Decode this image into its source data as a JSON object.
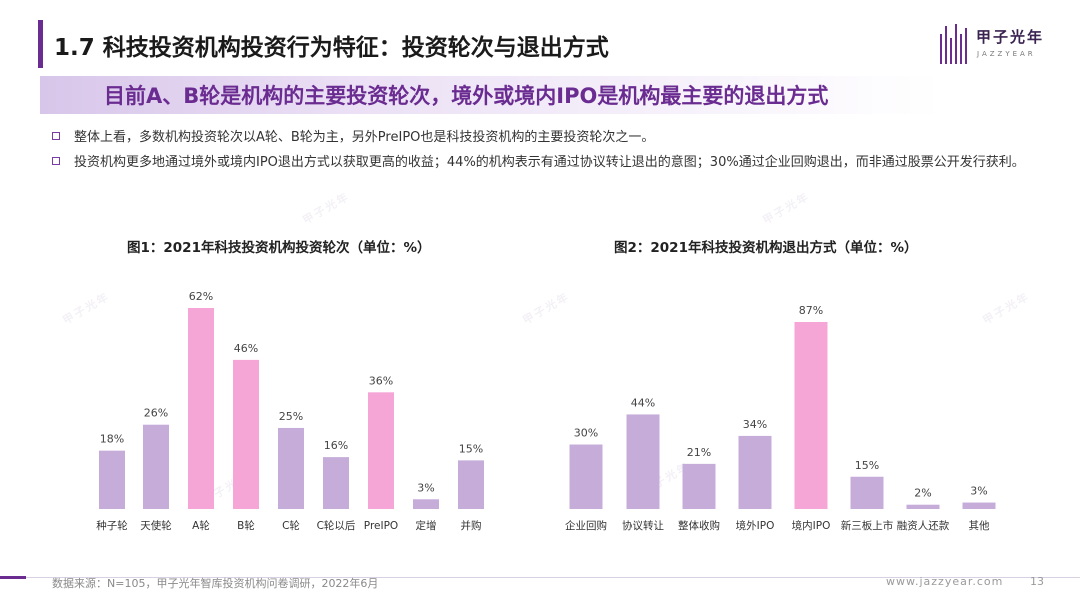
{
  "header": {
    "title": "1.7 科技投资机构投资行为特征：投资轮次与退出方式",
    "logo_text": "甲子光年",
    "logo_sub": "JAZZYEAR"
  },
  "subtitle": "目前A、B轮是机构的主要投资轮次，境外或境内IPO是机构最主要的退出方式",
  "bullets": [
    "整体上看，多数机构投资轮次以A轮、B轮为主，另外PreIPO也是科技投资机构的主要投资轮次之一。",
    "投资机构更多地通过境外或境内IPO退出方式以获取更高的收益；44%的机构表示有通过协议转让退出的意图；30%通过企业回购退出，而非通过股票公开发行获利。"
  ],
  "colors": {
    "primary": "#6b2c91",
    "bar_normal": "#c5acd9",
    "bar_highlight": "#f5a6d6"
  },
  "chart_data": [
    {
      "type": "bar",
      "title": "图1：2021年科技投资机构投资轮次（单位：%）",
      "categories": [
        "种子轮",
        "天使轮",
        "A轮",
        "B轮",
        "C轮",
        "C轮以后",
        "PreIPO",
        "定增",
        "并购"
      ],
      "values": [
        18,
        26,
        62,
        46,
        25,
        16,
        36,
        3,
        15
      ],
      "value_labels": [
        "18%",
        "26%",
        "62%",
        "46%",
        "25%",
        "16%",
        "36%",
        "3%",
        "15%"
      ],
      "highlight": [
        false,
        false,
        true,
        true,
        false,
        false,
        true,
        false,
        false
      ],
      "ylim": [
        0,
        62
      ]
    },
    {
      "type": "bar",
      "title": "图2：2021年科技投资机构退出方式（单位：%）",
      "categories": [
        "企业回购",
        "协议转让",
        "整体收购",
        "境外IPO",
        "境内IPO",
        "新三板上市",
        "融资人还款",
        "其他"
      ],
      "values": [
        30,
        44,
        21,
        34,
        87,
        15,
        2,
        3
      ],
      "value_labels": [
        "30%",
        "44%",
        "21%",
        "34%",
        "87%",
        "15%",
        "2%",
        "3%"
      ],
      "highlight": [
        false,
        false,
        false,
        false,
        true,
        false,
        false,
        false
      ],
      "ylim": [
        0,
        87
      ]
    }
  ],
  "footer": {
    "source": "数据来源：N=105，甲子光年智库投资机构问卷调研，2022年6月",
    "url": "www.jazzyear.com",
    "page": "13"
  }
}
